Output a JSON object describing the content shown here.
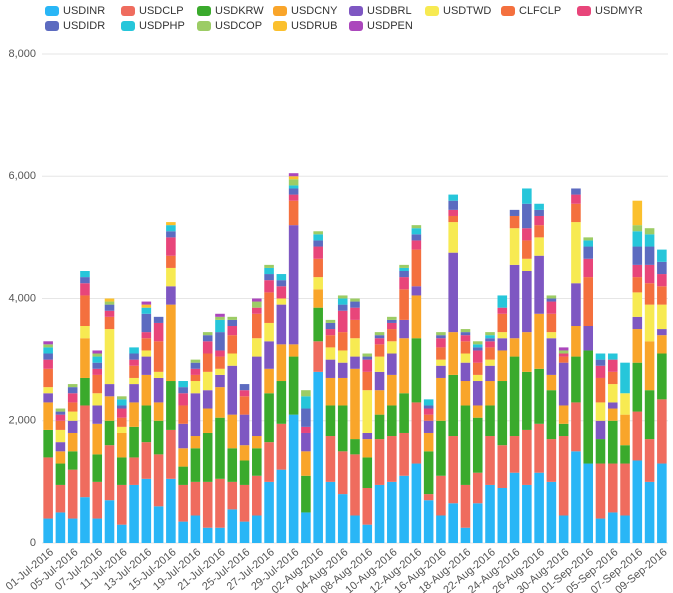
{
  "chart_data": {
    "type": "stacked_bar",
    "categories": [
      "01-Jul-2016",
      null,
      "05-Jul-2016",
      null,
      "07-Jul-2016",
      null,
      "11-Jul-2016",
      null,
      "13-Jul-2016",
      null,
      "15-Jul-2016",
      null,
      "19-Jul-2016",
      null,
      "21-Jul-2016",
      null,
      "25-Jul-2016",
      null,
      "27-Jul-2016",
      null,
      "29-Jul-2016",
      null,
      "02-Aug-2016",
      null,
      "04-Aug-2016",
      null,
      "08-Aug-2016",
      null,
      "10-Aug-2016",
      null,
      "12-Aug-2016",
      null,
      "16-Aug-2016",
      null,
      "18-Aug-2016",
      null,
      "22-Aug-2016",
      null,
      "24-Aug-2016",
      null,
      "26-Aug-2016",
      null,
      "30-Aug-2016",
      null,
      "01-Sep-2016",
      null,
      "05-Sep-2016",
      null,
      "07-Sep-2016",
      null,
      "09-Sep-2016"
    ],
    "ylim": [
      0,
      8000
    ],
    "yticks": [
      0,
      {
        "value": 2000,
        "label": "2,000"
      },
      {
        "value": 4000,
        "label": "4,000"
      },
      {
        "value": 6000,
        "label": "6,000"
      },
      {
        "value": 8000,
        "label": "8,000"
      }
    ],
    "grid": true,
    "rows": [
      [
        400,
        1000,
        450,
        450,
        150,
        100,
        300,
        150,
        100,
        100,
        50,
        0,
        50
      ],
      [
        500,
        450,
        350,
        200,
        150,
        200,
        150,
        100,
        50,
        0,
        50,
        0,
        0
      ],
      [
        400,
        800,
        300,
        300,
        200,
        150,
        150,
        150,
        100,
        0,
        50,
        0,
        0
      ],
      [
        750,
        1500,
        450,
        650,
        0,
        200,
        500,
        200,
        100,
        100,
        0,
        0,
        0
      ],
      [
        400,
        600,
        450,
        500,
        300,
        200,
        300,
        100,
        100,
        100,
        50,
        0,
        50
      ],
      [
        700,
        900,
        400,
        400,
        200,
        900,
        200,
        100,
        100,
        0,
        50,
        50,
        0
      ],
      [
        300,
        650,
        450,
        400,
        0,
        100,
        150,
        150,
        50,
        100,
        50,
        0,
        0
      ],
      [
        950,
        450,
        500,
        400,
        300,
        100,
        200,
        100,
        100,
        100,
        0,
        0,
        0
      ],
      [
        1050,
        600,
        600,
        500,
        300,
        100,
        200,
        100,
        300,
        100,
        0,
        50,
        50
      ],
      [
        600,
        850,
        550,
        300,
        400,
        100,
        500,
        300,
        100,
        0,
        0,
        0,
        0
      ],
      [
        1050,
        800,
        800,
        1250,
        300,
        300,
        200,
        300,
        100,
        100,
        0,
        50,
        0
      ],
      [
        350,
        600,
        300,
        300,
        400,
        0,
        300,
        200,
        100,
        100,
        0,
        0,
        0
      ],
      [
        450,
        550,
        550,
        200,
        700,
        200,
        100,
        100,
        100,
        0,
        50,
        0,
        0
      ],
      [
        250,
        750,
        800,
        400,
        300,
        300,
        300,
        200,
        100,
        0,
        50,
        0,
        0
      ],
      [
        250,
        800,
        1000,
        500,
        200,
        100,
        200,
        100,
        300,
        200,
        50,
        0,
        50
      ],
      [
        550,
        450,
        550,
        550,
        800,
        200,
        300,
        150,
        100,
        0,
        50,
        0,
        0
      ],
      [
        350,
        600,
        400,
        250,
        500,
        0,
        300,
        100,
        100,
        0,
        0,
        0,
        0
      ],
      [
        450,
        650,
        450,
        200,
        1300,
        300,
        400,
        100,
        0,
        0,
        100,
        0,
        50
      ],
      [
        1000,
        650,
        800,
        400,
        450,
        300,
        500,
        200,
        100,
        100,
        50,
        0,
        0
      ],
      [
        1200,
        750,
        700,
        600,
        650,
        100,
        0,
        200,
        100,
        100,
        0,
        0,
        0
      ],
      [
        2100,
        0,
        950,
        200,
        1950,
        0,
        400,
        100,
        100,
        50,
        100,
        50,
        50
      ],
      [
        500,
        0,
        600,
        400,
        300,
        0,
        0,
        100,
        300,
        200,
        100,
        0,
        0
      ],
      [
        2800,
        500,
        550,
        300,
        0,
        200,
        300,
        200,
        100,
        100,
        50,
        0,
        0
      ],
      [
        1000,
        750,
        500,
        450,
        300,
        200,
        200,
        100,
        100,
        0,
        50,
        0,
        0
      ],
      [
        800,
        700,
        750,
        450,
        250,
        200,
        300,
        350,
        100,
        100,
        50,
        0,
        0
      ],
      [
        450,
        1000,
        250,
        1150,
        200,
        300,
        300,
        200,
        100,
        0,
        50,
        0,
        0
      ],
      [
        300,
        600,
        500,
        300,
        100,
        700,
        300,
        200,
        50,
        0,
        50,
        0,
        0
      ],
      [
        950,
        750,
        400,
        400,
        300,
        250,
        200,
        100,
        50,
        0,
        50,
        0,
        0
      ],
      [
        1000,
        750,
        500,
        500,
        350,
        200,
        200,
        100,
        50,
        0,
        50,
        0,
        0
      ],
      [
        1100,
        700,
        650,
        900,
        300,
        0,
        500,
        200,
        100,
        50,
        50,
        0,
        0
      ],
      [
        1300,
        1000,
        1050,
        700,
        150,
        0,
        600,
        150,
        100,
        100,
        50,
        0,
        0
      ],
      [
        700,
        100,
        700,
        300,
        200,
        0,
        100,
        100,
        50,
        100,
        0,
        0,
        0
      ],
      [
        450,
        650,
        900,
        700,
        200,
        100,
        200,
        150,
        50,
        0,
        50,
        0,
        0
      ],
      [
        650,
        1100,
        1000,
        700,
        1300,
        500,
        100,
        100,
        150,
        100,
        0,
        0,
        0
      ],
      [
        250,
        700,
        1300,
        400,
        300,
        150,
        200,
        100,
        50,
        0,
        50,
        0,
        0
      ],
      [
        650,
        500,
        900,
        200,
        400,
        100,
        200,
        200,
        50,
        50,
        50,
        0,
        0
      ],
      [
        950,
        800,
        500,
        400,
        250,
        100,
        200,
        100,
        50,
        50,
        50,
        0,
        0
      ],
      [
        900,
        700,
        1050,
        500,
        200,
        100,
        300,
        100,
        0,
        200,
        0,
        0,
        0
      ],
      [
        1150,
        600,
        1300,
        300,
        1200,
        600,
        200,
        0,
        100,
        0,
        0,
        0,
        0
      ],
      [
        950,
        900,
        950,
        650,
        1000,
        200,
        300,
        200,
        400,
        250,
        0,
        0,
        0
      ],
      [
        1150,
        800,
        900,
        900,
        950,
        300,
        200,
        150,
        100,
        100,
        0,
        0,
        0
      ],
      [
        1000,
        700,
        800,
        250,
        600,
        100,
        300,
        200,
        50,
        0,
        50,
        0,
        0
      ],
      [
        450,
        1300,
        200,
        300,
        700,
        0,
        100,
        50,
        0,
        0,
        50,
        0,
        50
      ],
      [
        1500,
        800,
        750,
        500,
        700,
        1000,
        300,
        150,
        100,
        0,
        0,
        0,
        0
      ],
      [
        1300,
        0,
        1850,
        0,
        400,
        0,
        800,
        300,
        200,
        100,
        50,
        0,
        0
      ],
      [
        400,
        900,
        400,
        0,
        300,
        300,
        400,
        200,
        100,
        100,
        0,
        0,
        0
      ],
      [
        500,
        800,
        700,
        200,
        100,
        300,
        200,
        200,
        0,
        100,
        0,
        0,
        0
      ],
      [
        450,
        850,
        300,
        500,
        0,
        350,
        0,
        0,
        0,
        500,
        0,
        0,
        0
      ],
      [
        1350,
        800,
        800,
        550,
        200,
        400,
        250,
        200,
        300,
        250,
        100,
        400,
        0
      ],
      [
        1000,
        700,
        800,
        800,
        0,
        600,
        350,
        300,
        300,
        200,
        100,
        0,
        0
      ],
      [
        1300,
        1050,
        750,
        300,
        100,
        400,
        300,
        200,
        200,
        200,
        0,
        0,
        0
      ]
    ],
    "series": [
      {
        "name": "USDINR",
        "color": "#29b6f6"
      },
      {
        "name": "USDCLP",
        "color": "#ef6c5e"
      },
      {
        "name": "USDKRW",
        "color": "#3aaa2c"
      },
      {
        "name": "USDCNY",
        "color": "#f9a52a"
      },
      {
        "name": "USDBRL",
        "color": "#7e57c2"
      },
      {
        "name": "USDTWD",
        "color": "#f7ea52"
      },
      {
        "name": "CLFCLP",
        "color": "#f4703e"
      },
      {
        "name": "USDMYR",
        "color": "#e8457a"
      },
      {
        "name": "USDIDR",
        "color": "#5c6bc0"
      },
      {
        "name": "USDPHP",
        "color": "#26c6da"
      },
      {
        "name": "USDCOP",
        "color": "#9ccc65"
      },
      {
        "name": "USDRUB",
        "color": "#fbc02d"
      },
      {
        "name": "USDPEN",
        "color": "#ab47bc"
      }
    ]
  }
}
